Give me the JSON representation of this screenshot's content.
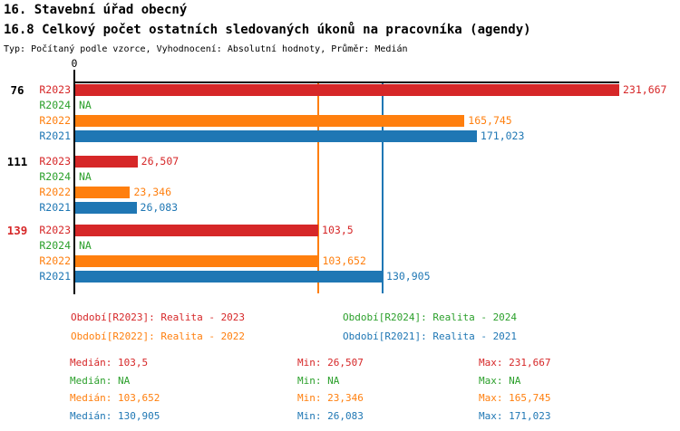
{
  "header": {
    "title1": "16. Stavební úřad obecný",
    "title2": "16.8 Celkový počet ostatních sledovaných úkonů na pracovníka (agendy)",
    "subtitle": "Typ: Počítaný podle vzorce, Vyhodnocení: Absolutní hodnoty, Průměr: Medián"
  },
  "colors": {
    "R2023": "#d62728",
    "R2024": "#2ca02c",
    "R2022": "#ff7f0e",
    "R2021": "#1f77b4",
    "axis": "#000000",
    "group_id_default": "#000000"
  },
  "chart_data": {
    "type": "bar",
    "orientation": "horizontal",
    "axis_origin_label": "0",
    "xlim": [
      0,
      231.667
    ],
    "grid": false,
    "series_order": [
      "R2023",
      "R2024",
      "R2022",
      "R2021"
    ],
    "reference_lines": [
      {
        "name": "median-R2022",
        "color_key": "R2022",
        "value": 103.652
      },
      {
        "name": "median-R2021",
        "color_key": "R2021",
        "value": 130.905
      }
    ],
    "groups": [
      {
        "id": "76",
        "id_color": "#000000",
        "bars": [
          {
            "series": "R2023",
            "value": 231.667,
            "label": "231,667"
          },
          {
            "series": "R2024",
            "value": null,
            "label": "NA"
          },
          {
            "series": "R2022",
            "value": 165.745,
            "label": "165,745"
          },
          {
            "series": "R2021",
            "value": 171.023,
            "label": "171,023"
          }
        ]
      },
      {
        "id": "111",
        "id_color": "#000000",
        "bars": [
          {
            "series": "R2023",
            "value": 26.507,
            "label": "26,507"
          },
          {
            "series": "R2024",
            "value": null,
            "label": "NA"
          },
          {
            "series": "R2022",
            "value": 23.346,
            "label": "23,346"
          },
          {
            "series": "R2021",
            "value": 26.083,
            "label": "26,083"
          }
        ]
      },
      {
        "id": "139",
        "id_color": "#d62728",
        "bars": [
          {
            "series": "R2023",
            "value": 103.5,
            "label": "103,5"
          },
          {
            "series": "R2024",
            "value": null,
            "label": "NA"
          },
          {
            "series": "R2022",
            "value": 103.652,
            "label": "103,652"
          },
          {
            "series": "R2021",
            "value": 130.905,
            "label": "130,905"
          }
        ]
      }
    ]
  },
  "legend": {
    "items": [
      {
        "color_key": "R2023",
        "label": "Období[R2023]: Realita - 2023"
      },
      {
        "color_key": "R2024",
        "label": "Období[R2024]: Realita - 2024"
      },
      {
        "color_key": "R2022",
        "label": "Období[R2022]: Realita - 2022"
      },
      {
        "color_key": "R2021",
        "label": "Období[R2021]: Realita - 2021"
      }
    ]
  },
  "stats": {
    "labels": {
      "median": "Medián",
      "min": "Min",
      "max": "Max"
    },
    "rows": [
      {
        "color_key": "R2023",
        "median": "103,5",
        "min": "26,507",
        "max": "231,667"
      },
      {
        "color_key": "R2024",
        "median": "NA",
        "min": "NA",
        "max": "NA"
      },
      {
        "color_key": "R2022",
        "median": "103,652",
        "min": "23,346",
        "max": "165,745"
      },
      {
        "color_key": "R2021",
        "median": "130,905",
        "min": "26,083",
        "max": "171,023"
      }
    ]
  }
}
